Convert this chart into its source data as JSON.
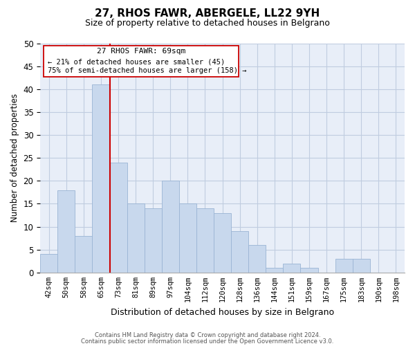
{
  "title": "27, RHOS FAWR, ABERGELE, LL22 9YH",
  "subtitle": "Size of property relative to detached houses in Belgrano",
  "xlabel": "Distribution of detached houses by size in Belgrano",
  "ylabel": "Number of detached properties",
  "bar_labels": [
    "42sqm",
    "50sqm",
    "58sqm",
    "65sqm",
    "73sqm",
    "81sqm",
    "89sqm",
    "97sqm",
    "104sqm",
    "112sqm",
    "120sqm",
    "128sqm",
    "136sqm",
    "144sqm",
    "151sqm",
    "159sqm",
    "167sqm",
    "175sqm",
    "183sqm",
    "190sqm",
    "198sqm"
  ],
  "bar_values": [
    4,
    18,
    8,
    41,
    24,
    15,
    14,
    20,
    15,
    14,
    13,
    9,
    6,
    1,
    2,
    1,
    0,
    3,
    3,
    0,
    0
  ],
  "bar_color": "#c8d8ed",
  "bar_edge_color": "#9ab4d4",
  "vline_x_idx": 3.5,
  "vline_color": "#cc0000",
  "ylim": [
    0,
    50
  ],
  "yticks": [
    0,
    5,
    10,
    15,
    20,
    25,
    30,
    35,
    40,
    45,
    50
  ],
  "annotation_title": "27 RHOS FAWR: 69sqm",
  "annotation_line1": "← 21% of detached houses are smaller (45)",
  "annotation_line2": "75% of semi-detached houses are larger (158) →",
  "footer_line1": "Contains HM Land Registry data © Crown copyright and database right 2024.",
  "footer_line2": "Contains public sector information licensed under the Open Government Licence v3.0.",
  "background_color": "#ffffff",
  "plot_bg_color": "#e8eef8",
  "grid_color": "#c0cce0"
}
